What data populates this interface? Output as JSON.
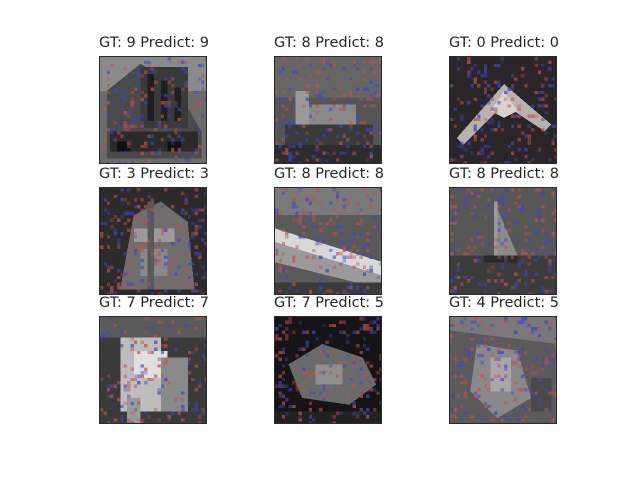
{
  "figure": {
    "panels": [
      {
        "gt": "9",
        "pred": "9",
        "title": "GT: 9 Predict: 9",
        "subject": "truck-icon"
      },
      {
        "gt": "8",
        "pred": "8",
        "title": "GT: 8 Predict: 8",
        "subject": "ship-icon"
      },
      {
        "gt": "0",
        "pred": "0",
        "title": "GT: 0 Predict: 0",
        "subject": "airplane-icon"
      },
      {
        "gt": "3",
        "pred": "3",
        "title": "GT: 3 Predict: 3",
        "subject": "cat-icon"
      },
      {
        "gt": "8",
        "pred": "8",
        "title": "GT: 8 Predict: 8",
        "subject": "ship-icon"
      },
      {
        "gt": "8",
        "pred": "8",
        "title": "GT: 8 Predict: 8",
        "subject": "sailboat-icon"
      },
      {
        "gt": "7",
        "pred": "7",
        "title": "GT: 7 Predict: 7",
        "subject": "horse-icon"
      },
      {
        "gt": "7",
        "pred": "5",
        "title": "GT: 7 Predict: 5",
        "subject": "horse-icon"
      },
      {
        "gt": "4",
        "pred": "5",
        "title": "GT: 4 Predict: 5",
        "subject": "deer-icon"
      }
    ]
  },
  "colors": {
    "title_text": "#262626",
    "noise_red": "#c0504d",
    "noise_blue": "#3c46c8",
    "background": "#ffffff"
  }
}
